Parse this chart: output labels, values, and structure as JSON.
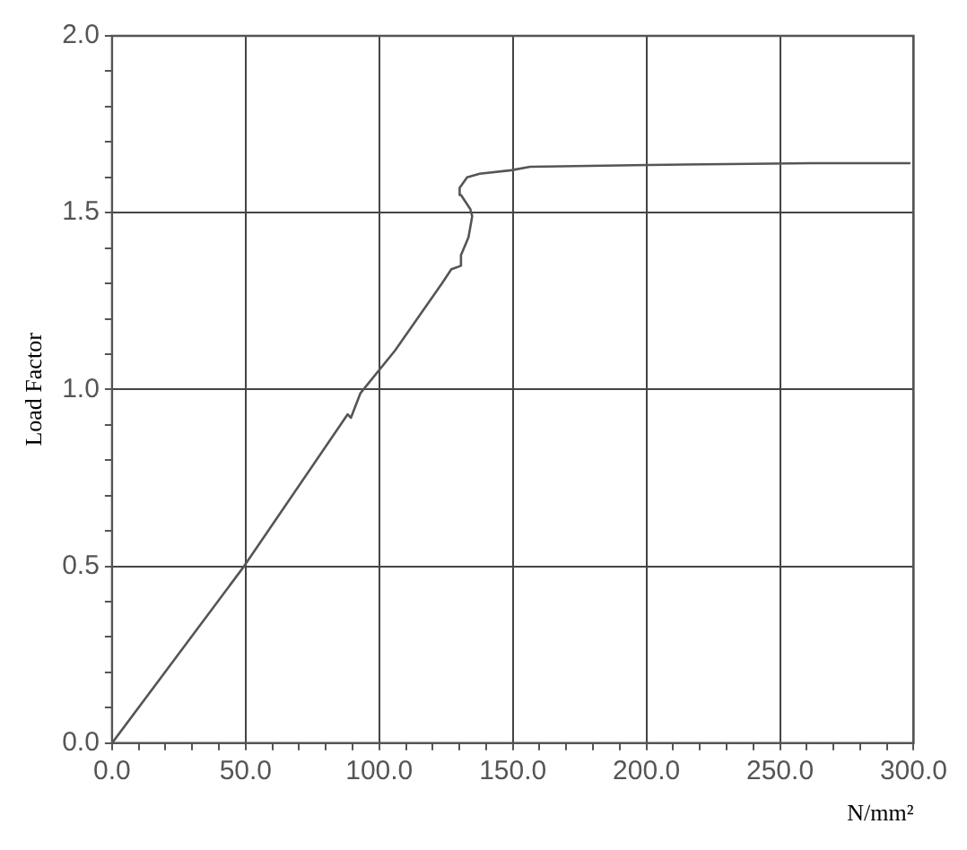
{
  "chart_data": {
    "type": "line",
    "xlabel": "N/mm²",
    "ylabel": "Load Factor",
    "series": [
      {
        "color": "#555555",
        "x": [
          0,
          49.4,
          88.2,
          89.4,
          93,
          105.9,
          123.5,
          127,
          130.6,
          130.6,
          133.4,
          134.8,
          134.1,
          130.6,
          130.1,
          132.9,
          137.6,
          149.4,
          156.5,
          201,
          262,
          298.8
        ],
        "values": [
          0,
          0.5,
          0.93,
          0.92,
          0.99,
          1.11,
          1.3,
          1.34,
          1.35,
          1.38,
          1.43,
          1.49,
          1.51,
          1.55,
          1.57,
          1.6,
          1.61,
          1.62,
          1.63,
          1.635,
          1.64,
          1.64
        ]
      }
    ],
    "xlim": [
      0,
      300
    ],
    "xticks": [
      {
        "value": 0,
        "label": "0.0"
      },
      {
        "value": 10,
        "label": null
      },
      {
        "value": 20,
        "label": null
      },
      {
        "value": 30,
        "label": null
      },
      {
        "value": 40,
        "label": null
      },
      {
        "value": 50,
        "label": "50.0"
      },
      {
        "value": 60,
        "label": null
      },
      {
        "value": 70,
        "label": null
      },
      {
        "value": 80,
        "label": null
      },
      {
        "value": 90,
        "label": null
      },
      {
        "value": 100,
        "label": "100.0"
      },
      {
        "value": 110,
        "label": null
      },
      {
        "value": 120,
        "label": null
      },
      {
        "value": 130,
        "label": null
      },
      {
        "value": 140,
        "label": null
      },
      {
        "value": 150,
        "label": "150.0"
      },
      {
        "value": 160,
        "label": null
      },
      {
        "value": 170,
        "label": null
      },
      {
        "value": 180,
        "label": null
      },
      {
        "value": 190,
        "label": null
      },
      {
        "value": 200,
        "label": "200.0"
      },
      {
        "value": 210,
        "label": null
      },
      {
        "value": 220,
        "label": null
      },
      {
        "value": 230,
        "label": null
      },
      {
        "value": 240,
        "label": null
      },
      {
        "value": 250,
        "label": "250.0"
      },
      {
        "value": 260,
        "label": null
      },
      {
        "value": 270,
        "label": null
      },
      {
        "value": 280,
        "label": null
      },
      {
        "value": 290,
        "label": null
      },
      {
        "value": 300,
        "label": "300.0"
      }
    ],
    "ylim": [
      0,
      2
    ],
    "yticks": [
      {
        "value": 0,
        "label": "0.0"
      },
      {
        "value": 0.1,
        "label": null
      },
      {
        "value": 0.2,
        "label": null
      },
      {
        "value": 0.3,
        "label": null
      },
      {
        "value": 0.4,
        "label": null
      },
      {
        "value": 0.5,
        "label": "0.5"
      },
      {
        "value": 0.6,
        "label": null
      },
      {
        "value": 0.7,
        "label": null
      },
      {
        "value": 0.8,
        "label": null
      },
      {
        "value": 0.9,
        "label": null
      },
      {
        "value": 1,
        "label": "1.0"
      },
      {
        "value": 1.1,
        "label": null
      },
      {
        "value": 1.2,
        "label": null
      },
      {
        "value": 1.3,
        "label": null
      },
      {
        "value": 1.4,
        "label": null
      },
      {
        "value": 1.5,
        "label": "1.5"
      },
      {
        "value": 1.6,
        "label": null
      },
      {
        "value": 1.7,
        "label": null
      },
      {
        "value": 1.8,
        "label": null
      },
      {
        "value": 1.9,
        "label": null
      },
      {
        "value": 2,
        "label": "2.0"
      }
    ],
    "grid": true,
    "legend": false,
    "marker": "none",
    "line_style": "solid"
  }
}
